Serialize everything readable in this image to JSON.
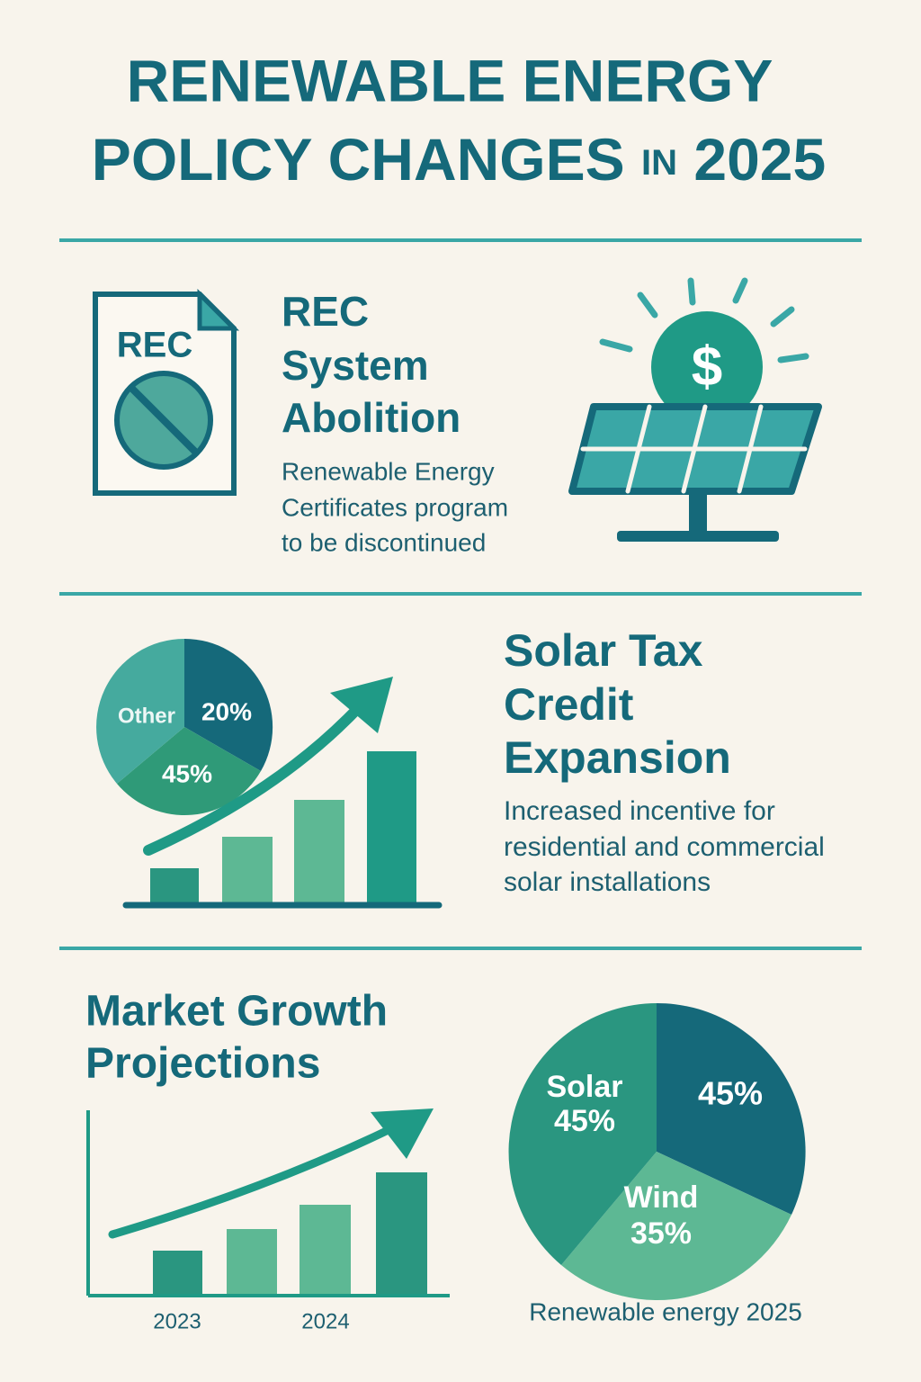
{
  "header": {
    "title_line1": "RENEWABLE ENERGY",
    "title_line2": "POLICY CHANGES",
    "title_small": "IN",
    "title_year": "2025"
  },
  "sections": [
    {
      "icon_label": "REC",
      "heading": [
        "REC",
        "System",
        "Abolition"
      ],
      "body": [
        "Renewable Energy",
        "Certificates program",
        "to be discontinued"
      ]
    },
    {
      "pie_labels": [
        "Other",
        "20%",
        "45%"
      ],
      "heading": [
        "Solar Tax",
        "Credit",
        "Expansion"
      ],
      "body": [
        "Increased incentive for",
        "residential and commercial",
        "solar installations"
      ]
    },
    {
      "heading": [
        "Market Growth",
        "Projections"
      ],
      "x_labels": [
        "2023",
        "2024"
      ],
      "pie_labels": {
        "solar": [
          "Solar",
          "45%"
        ],
        "right": "45%",
        "wind": [
          "Wind",
          "35%"
        ]
      },
      "caption": "Renewable energy 2025"
    }
  ]
}
